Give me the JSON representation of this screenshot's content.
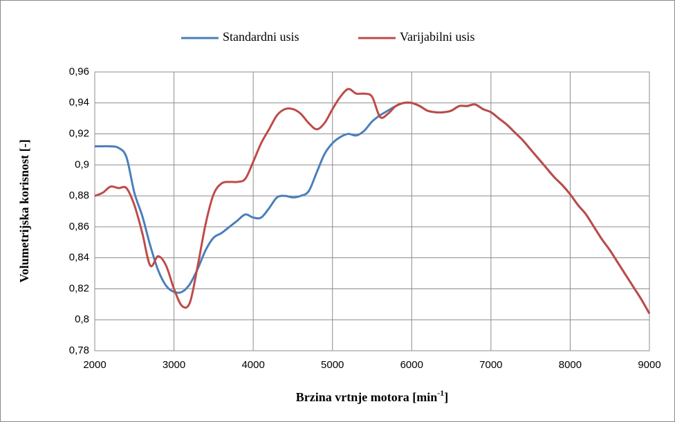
{
  "chart_data": {
    "type": "line",
    "ylabel": "Volumetrijska korisnost [-]",
    "xlabel": {
      "text": "Brzina vrtnje motora [min",
      "sup": "-1",
      "end": "]"
    },
    "x": [
      2000,
      2100,
      2200,
      2300,
      2400,
      2500,
      2600,
      2700,
      2800,
      2900,
      3000,
      3100,
      3200,
      3300,
      3400,
      3500,
      3600,
      3700,
      3800,
      3900,
      4000,
      4100,
      4200,
      4300,
      4400,
      4500,
      4600,
      4700,
      4800,
      4900,
      5000,
      5100,
      5200,
      5300,
      5400,
      5500,
      5600,
      5700,
      5800,
      5900,
      6000,
      6100,
      6200,
      6300,
      6400,
      6500,
      6600,
      6700,
      6800,
      6900,
      7000,
      7100,
      7200,
      7300,
      7400,
      7500,
      7600,
      7700,
      7800,
      7900,
      8000,
      8100,
      8200,
      8300,
      8400,
      8500,
      8600,
      8700,
      8800,
      8900,
      9000
    ],
    "series": [
      {
        "name": "Standardni usis",
        "color": "#4a7ebb",
        "values": [
          0.912,
          0.912,
          0.912,
          0.911,
          0.905,
          0.882,
          0.867,
          0.848,
          0.832,
          0.822,
          0.818,
          0.818,
          0.823,
          0.833,
          0.845,
          0.853,
          0.856,
          0.86,
          0.864,
          0.868,
          0.866,
          0.866,
          0.872,
          0.879,
          0.88,
          0.879,
          0.88,
          0.883,
          0.895,
          0.907,
          0.914,
          0.918,
          0.92,
          0.919,
          0.922,
          0.928,
          0.932,
          0.935,
          0.938,
          0.94,
          0.94,
          0.938,
          0.935,
          0.934,
          0.934,
          0.935,
          0.938,
          0.938,
          0.939,
          0.936,
          0.934,
          0.93,
          0.926,
          0.921,
          0.916,
          0.91,
          0.904,
          0.898,
          0.892,
          0.887,
          0.881,
          0.874,
          0.868,
          0.86,
          0.852,
          0.845,
          0.837,
          0.829,
          0.821,
          0.813,
          0.804
        ]
      },
      {
        "name": "Varijabilni usis",
        "color": "#be4b48",
        "values": [
          0.88,
          0.882,
          0.886,
          0.885,
          0.885,
          0.874,
          0.856,
          0.835,
          0.841,
          0.835,
          0.82,
          0.809,
          0.811,
          0.835,
          0.862,
          0.881,
          0.888,
          0.889,
          0.889,
          0.891,
          0.902,
          0.914,
          0.923,
          0.932,
          0.936,
          0.936,
          0.933,
          0.927,
          0.923,
          0.927,
          0.936,
          0.944,
          0.949,
          0.946,
          0.946,
          0.944,
          0.931,
          0.933,
          0.938,
          0.94,
          0.94,
          0.938,
          0.935,
          0.934,
          0.934,
          0.935,
          0.938,
          0.938,
          0.939,
          0.936,
          0.934,
          0.93,
          0.926,
          0.921,
          0.916,
          0.91,
          0.904,
          0.898,
          0.892,
          0.887,
          0.881,
          0.874,
          0.868,
          0.86,
          0.852,
          0.845,
          0.837,
          0.829,
          0.821,
          0.813,
          0.804
        ]
      }
    ],
    "xlim": [
      2000,
      9000
    ],
    "xticks": [
      2000,
      3000,
      4000,
      5000,
      6000,
      7000,
      8000,
      9000
    ],
    "ylim": [
      0.78,
      0.96
    ],
    "yticks": [
      {
        "value": 0.78,
        "label": "0,78"
      },
      {
        "value": 0.8,
        "label": "0,8"
      },
      {
        "value": 0.82,
        "label": "0,82"
      },
      {
        "value": 0.84,
        "label": "0,84"
      },
      {
        "value": 0.86,
        "label": "0,86"
      },
      {
        "value": 0.88,
        "label": "0,88"
      },
      {
        "value": 0.9,
        "label": "0,9"
      },
      {
        "value": 0.92,
        "label": "0,92"
      },
      {
        "value": 0.94,
        "label": "0,94"
      },
      {
        "value": 0.96,
        "label": "0,96"
      }
    ],
    "grid": true,
    "legend": "top"
  }
}
